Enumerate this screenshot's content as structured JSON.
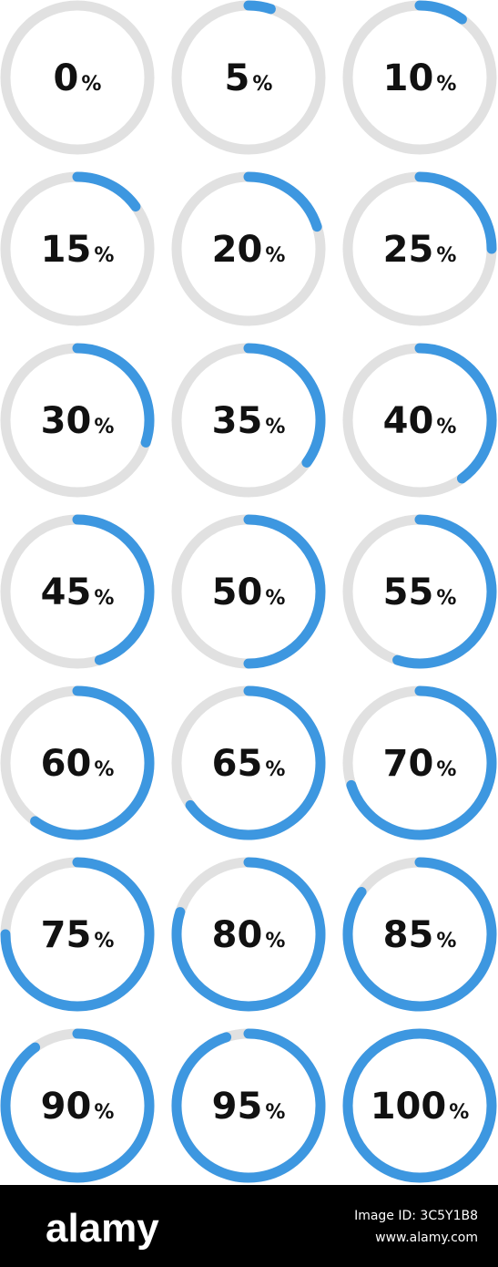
{
  "rings": [
    0,
    5,
    10,
    15,
    20,
    25,
    30,
    35,
    40,
    45,
    50,
    55,
    60,
    65,
    70,
    75,
    80,
    85,
    90,
    95,
    100
  ],
  "unit": "%",
  "max": 100,
  "track_color": "#e1e1e1",
  "fill_color": "#3d97e0",
  "footer": {
    "logo": "alamy",
    "image_id": "Image ID: 3C5Y1B8",
    "url": "www.alamy.com"
  }
}
